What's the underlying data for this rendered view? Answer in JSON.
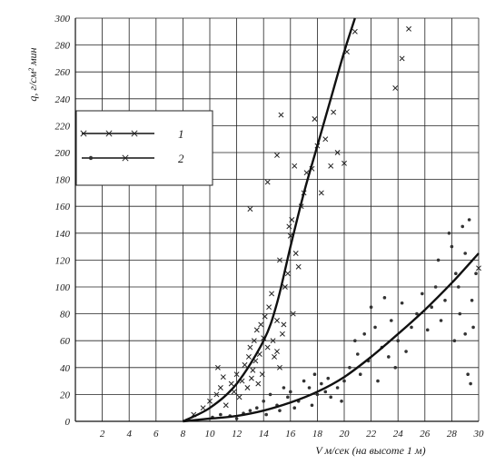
{
  "chart_data": {
    "type": "scatter",
    "xlabel": "V м/сек (на высоте 1 м)",
    "ylabel": "q, г/см² мин",
    "xlim": [
      0,
      30
    ],
    "ylim": [
      0,
      300
    ],
    "x_ticks": [
      2,
      4,
      6,
      8,
      10,
      12,
      14,
      16,
      18,
      20,
      22,
      24,
      26,
      28,
      30
    ],
    "y_ticks": [
      0,
      20,
      40,
      60,
      80,
      100,
      120,
      140,
      160,
      180,
      200,
      220,
      240,
      260,
      280,
      300
    ],
    "grid": true,
    "legend_position": "top-left",
    "legend": [
      {
        "label": "1",
        "marker": "x"
      },
      {
        "label": "2",
        "marker": "o"
      }
    ],
    "series": [
      {
        "name": "1",
        "marker": "x",
        "points": [
          [
            8.8,
            5
          ],
          [
            9.5,
            10
          ],
          [
            10.0,
            15
          ],
          [
            10.5,
            20
          ],
          [
            10.8,
            25
          ],
          [
            10.6,
            40
          ],
          [
            11.0,
            33
          ],
          [
            11.2,
            12
          ],
          [
            11.6,
            28
          ],
          [
            11.8,
            22
          ],
          [
            12.0,
            35
          ],
          [
            12.2,
            18
          ],
          [
            12.4,
            30
          ],
          [
            12.6,
            42
          ],
          [
            12.8,
            25
          ],
          [
            12.9,
            48
          ],
          [
            13.0,
            55
          ],
          [
            13.1,
            32
          ],
          [
            13.2,
            38
          ],
          [
            13.3,
            60
          ],
          [
            13.4,
            45
          ],
          [
            13.5,
            68
          ],
          [
            13.6,
            28
          ],
          [
            13.7,
            50
          ],
          [
            13.8,
            72
          ],
          [
            13.9,
            35
          ],
          [
            14.0,
            62
          ],
          [
            14.1,
            78
          ],
          [
            14.3,
            55
          ],
          [
            14.4,
            85
          ],
          [
            14.6,
            95
          ],
          [
            14.7,
            60
          ],
          [
            14.8,
            48
          ],
          [
            15.0,
            75
          ],
          [
            15.0,
            52
          ],
          [
            15.2,
            120
          ],
          [
            15.2,
            40
          ],
          [
            15.4,
            65
          ],
          [
            15.5,
            72
          ],
          [
            15.6,
            100
          ],
          [
            15.8,
            110
          ],
          [
            15.9,
            145
          ],
          [
            16.0,
            138
          ],
          [
            16.1,
            150
          ],
          [
            16.2,
            80
          ],
          [
            16.4,
            125
          ],
          [
            16.6,
            115
          ],
          [
            16.8,
            160
          ],
          [
            17.0,
            170
          ],
          [
            17.2,
            185
          ],
          [
            17.6,
            188
          ],
          [
            17.8,
            225
          ],
          [
            18.0,
            205
          ],
          [
            18.3,
            170
          ],
          [
            18.6,
            210
          ],
          [
            19.0,
            190
          ],
          [
            19.2,
            230
          ],
          [
            19.5,
            200
          ],
          [
            20.0,
            192
          ],
          [
            20.2,
            275
          ],
          [
            20.8,
            290
          ],
          [
            15.3,
            228
          ],
          [
            15.0,
            198
          ],
          [
            14.3,
            178
          ],
          [
            13.0,
            158
          ],
          [
            16.3,
            190
          ],
          [
            23.8,
            248
          ],
          [
            24.3,
            270
          ],
          [
            24.8,
            292
          ],
          [
            30.0,
            114
          ]
        ],
        "fit_curve": [
          [
            8,
            0
          ],
          [
            10,
            10
          ],
          [
            12,
            28
          ],
          [
            14,
            60
          ],
          [
            15,
            88
          ],
          [
            16,
            130
          ],
          [
            17,
            170
          ],
          [
            18,
            205
          ],
          [
            19,
            240
          ],
          [
            20,
            275
          ],
          [
            20.8,
            300
          ]
        ]
      },
      {
        "name": "2",
        "marker": "o",
        "points": [
          [
            10.2,
            3
          ],
          [
            10.8,
            5
          ],
          [
            11.5,
            4
          ],
          [
            12.0,
            2
          ],
          [
            12.5,
            6
          ],
          [
            13.0,
            8
          ],
          [
            13.5,
            10
          ],
          [
            14.0,
            15
          ],
          [
            14.2,
            5
          ],
          [
            14.5,
            20
          ],
          [
            15.0,
            12
          ],
          [
            15.2,
            8
          ],
          [
            15.5,
            25
          ],
          [
            15.8,
            18
          ],
          [
            16.0,
            22
          ],
          [
            16.3,
            10
          ],
          [
            16.6,
            15
          ],
          [
            17.0,
            30
          ],
          [
            17.4,
            25
          ],
          [
            17.6,
            12
          ],
          [
            17.8,
            35
          ],
          [
            18.0,
            20
          ],
          [
            18.3,
            28
          ],
          [
            18.6,
            22
          ],
          [
            18.8,
            32
          ],
          [
            19.0,
            18
          ],
          [
            19.5,
            25
          ],
          [
            19.8,
            15
          ],
          [
            20.0,
            30
          ],
          [
            20.4,
            40
          ],
          [
            20.8,
            60
          ],
          [
            21.0,
            50
          ],
          [
            21.2,
            35
          ],
          [
            21.5,
            65
          ],
          [
            21.8,
            45
          ],
          [
            22.0,
            85
          ],
          [
            22.3,
            70
          ],
          [
            22.5,
            30
          ],
          [
            22.8,
            55
          ],
          [
            23.0,
            92
          ],
          [
            23.3,
            48
          ],
          [
            23.5,
            75
          ],
          [
            23.8,
            40
          ],
          [
            24.0,
            60
          ],
          [
            24.3,
            88
          ],
          [
            24.6,
            52
          ],
          [
            25.0,
            70
          ],
          [
            25.4,
            80
          ],
          [
            25.8,
            95
          ],
          [
            26.2,
            68
          ],
          [
            26.5,
            85
          ],
          [
            26.8,
            100
          ],
          [
            27.0,
            120
          ],
          [
            27.2,
            75
          ],
          [
            27.5,
            90
          ],
          [
            27.8,
            140
          ],
          [
            28.0,
            130
          ],
          [
            28.2,
            60
          ],
          [
            28.3,
            110
          ],
          [
            28.5,
            100
          ],
          [
            28.6,
            80
          ],
          [
            28.8,
            145
          ],
          [
            29.0,
            125
          ],
          [
            29.0,
            65
          ],
          [
            29.2,
            35
          ],
          [
            29.3,
            150
          ],
          [
            29.4,
            28
          ],
          [
            29.5,
            90
          ],
          [
            29.6,
            70
          ],
          [
            29.8,
            110
          ]
        ],
        "fit_curve": [
          [
            8,
            0
          ],
          [
            10,
            2
          ],
          [
            12,
            4
          ],
          [
            14,
            8
          ],
          [
            16,
            14
          ],
          [
            18,
            22
          ],
          [
            20,
            33
          ],
          [
            22,
            48
          ],
          [
            24,
            65
          ],
          [
            26,
            83
          ],
          [
            28,
            103
          ],
          [
            30,
            125
          ]
        ]
      }
    ]
  }
}
